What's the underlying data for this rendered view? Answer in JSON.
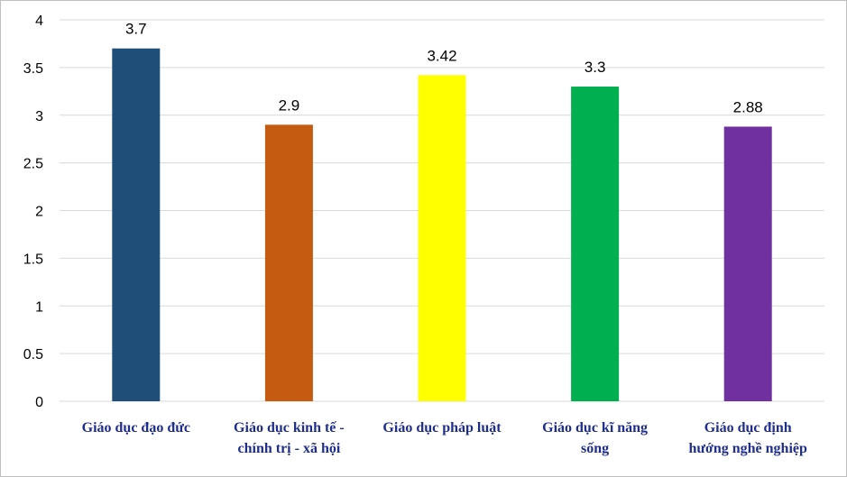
{
  "chart_data": {
    "type": "bar",
    "categories": [
      "Giáo dục đạo đức",
      "Giáo dục kinh tế - chính trị - xã hội",
      "Giáo dục pháp luật",
      "Giáo dục kĩ năng sống",
      "Giáo dục định hướng nghề nghiệp"
    ],
    "category_lines": [
      [
        "Giáo dục đạo đức"
      ],
      [
        "Giáo dục kinh tế -",
        "chính trị - xã hội"
      ],
      [
        "Giáo dục pháp luật"
      ],
      [
        "Giáo dục kĩ năng",
        "sống"
      ],
      [
        "Giáo dục định",
        "hướng nghề nghiệp"
      ]
    ],
    "values": [
      3.7,
      2.9,
      3.42,
      3.3,
      2.88
    ],
    "data_labels": [
      "3.7",
      "2.9",
      "3.42",
      "3.3",
      "2.88"
    ],
    "bar_colors": [
      "#1f4e79",
      "#c55a11",
      "#ffff00",
      "#00b050",
      "#7030a0"
    ],
    "yticks": [
      "0",
      "0.5",
      "1",
      "1.5",
      "2",
      "2.5",
      "3",
      "3.5",
      "4"
    ],
    "ylim": [
      0,
      4
    ],
    "grid": true,
    "gridline_color": "#d9d9d9",
    "category_label_color": "#1f2d8c",
    "title": "",
    "xlabel": "",
    "ylabel": ""
  }
}
